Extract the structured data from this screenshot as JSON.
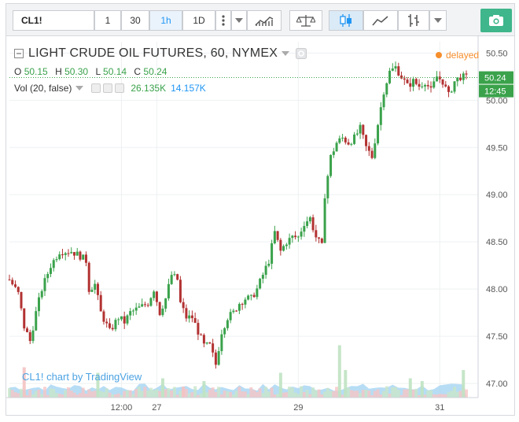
{
  "toolbar": {
    "symbol": "CL1!",
    "interval_1": "1",
    "interval_30": "30",
    "interval_1h": "1h",
    "interval_1d": "1D",
    "active_interval": "1h"
  },
  "legend": {
    "title": "LIGHT CRUDE OIL FUTURES, 60, NYMEX",
    "o_label": "O",
    "o": "50.15",
    "h_label": "H",
    "h": "50.30",
    "l_label": "L",
    "l": "50.14",
    "c_label": "C",
    "c": "50.24",
    "vol_label": "Vol (20, false)",
    "vol_1": "26.135K",
    "vol_2": "14.157K"
  },
  "status": {
    "delayed": "delayed"
  },
  "price_tags": {
    "last": "50.24",
    "time": "12:45"
  },
  "watermark": "CL1! chart by TradingView",
  "colors": {
    "up": "#3aa24b",
    "down": "#b33232",
    "volume_fill": "#9fd1f2",
    "accent": "#2196f3",
    "delayed": "#f68e2c",
    "camera": "#3fb68b"
  },
  "icons": [
    "chevron-down-icon",
    "more-vertical-icon",
    "compare-icon",
    "indicators-icon",
    "candles-icon",
    "line-style-icon",
    "bars-icon",
    "camera-icon"
  ],
  "chart_data": {
    "type": "candlestick",
    "y_ticks": [
      "50.50",
      "50.00",
      "49.50",
      "49.00",
      "48.50",
      "48.00",
      "47.50",
      "47.00"
    ],
    "ylim": [
      46.85,
      50.62
    ],
    "x_ticks": [
      {
        "label": "12:00",
        "at": 12
      },
      {
        "label": "27",
        "at": 24
      },
      {
        "label": "29",
        "at": 72
      },
      {
        "label": "31",
        "at": 120
      }
    ],
    "x_range": [
      -26,
      133
    ],
    "grid": true,
    "close_path": [
      [
        -26,
        48.1
      ],
      [
        -23,
        47.95
      ],
      [
        -21,
        47.6
      ],
      [
        -19,
        47.45
      ],
      [
        -17,
        47.75
      ],
      [
        -15,
        48.0
      ],
      [
        -12,
        48.25
      ],
      [
        -9,
        48.4
      ],
      [
        -5,
        48.4
      ],
      [
        -2,
        48.35
      ],
      [
        0,
        48.3
      ],
      [
        1,
        48.0
      ],
      [
        3,
        48.05
      ],
      [
        5,
        47.75
      ],
      [
        8,
        47.55
      ],
      [
        11,
        47.7
      ],
      [
        13,
        47.65
      ],
      [
        15,
        47.75
      ],
      [
        18,
        47.8
      ],
      [
        21,
        47.85
      ],
      [
        23,
        48.0
      ],
      [
        25,
        47.75
      ],
      [
        27,
        47.9
      ],
      [
        29,
        48.15
      ],
      [
        31,
        48.1
      ],
      [
        32,
        47.85
      ],
      [
        34,
        47.7
      ],
      [
        36,
        47.7
      ],
      [
        38,
        47.55
      ],
      [
        40,
        47.4
      ],
      [
        42,
        47.4
      ],
      [
        44,
        47.2
      ],
      [
        46,
        47.55
      ],
      [
        48,
        47.7
      ],
      [
        50,
        47.75
      ],
      [
        52,
        47.85
      ],
      [
        54,
        47.9
      ],
      [
        56,
        47.9
      ],
      [
        58,
        48.0
      ],
      [
        60,
        48.15
      ],
      [
        62,
        48.3
      ],
      [
        64,
        48.6
      ],
      [
        66,
        48.4
      ],
      [
        68,
        48.5
      ],
      [
        70,
        48.55
      ],
      [
        72,
        48.55
      ],
      [
        74,
        48.7
      ],
      [
        76,
        48.75
      ],
      [
        78,
        48.55
      ],
      [
        80,
        48.45
      ],
      [
        81,
        49.0
      ],
      [
        83,
        49.4
      ],
      [
        85,
        49.55
      ],
      [
        87,
        49.6
      ],
      [
        89,
        49.55
      ],
      [
        91,
        49.6
      ],
      [
        93,
        49.7
      ],
      [
        95,
        49.5
      ],
      [
        97,
        49.4
      ],
      [
        99,
        49.75
      ],
      [
        101,
        50.1
      ],
      [
        103,
        50.3
      ],
      [
        105,
        50.35
      ],
      [
        107,
        50.25
      ],
      [
        109,
        50.15
      ],
      [
        111,
        50.2
      ],
      [
        113,
        50.15
      ],
      [
        115,
        50.2
      ],
      [
        117,
        50.1
      ],
      [
        119,
        50.25
      ],
      [
        121,
        50.2
      ],
      [
        123,
        50.05
      ],
      [
        125,
        50.2
      ],
      [
        127,
        50.25
      ],
      [
        129,
        50.24
      ]
    ],
    "volume_spikes": [
      {
        "x": -21,
        "v": 0.55
      },
      {
        "x": 4,
        "v": 0.45
      },
      {
        "x": 26,
        "v": 0.35
      },
      {
        "x": 33,
        "v": 0.2
      },
      {
        "x": 40,
        "v": 0.3
      },
      {
        "x": 66,
        "v": 0.45
      },
      {
        "x": 86,
        "v": 0.95
      },
      {
        "x": 88,
        "v": 0.5
      },
      {
        "x": 110,
        "v": 0.35
      },
      {
        "x": 114,
        "v": 0.3
      },
      {
        "x": 128,
        "v": 0.5
      }
    ]
  }
}
